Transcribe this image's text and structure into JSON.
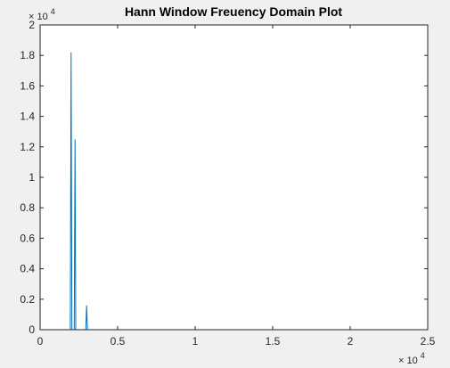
{
  "chart_data": {
    "type": "line",
    "title": "Hann Window Freuency Domain Plot",
    "xlabel": "",
    "ylabel": "",
    "xlim": [
      0,
      25000
    ],
    "ylim": [
      0,
      20000
    ],
    "grid": false,
    "x_ticks": [
      0,
      5000,
      10000,
      15000,
      20000,
      25000
    ],
    "x_tick_labels": [
      "0",
      "0.5",
      "1",
      "1.5",
      "2",
      "2.5"
    ],
    "y_ticks": [
      0,
      2000,
      4000,
      6000,
      8000,
      10000,
      12000,
      14000,
      16000,
      18000,
      20000
    ],
    "y_tick_labels": [
      "0",
      "0.2",
      "0.4",
      "0.6",
      "0.8",
      "1",
      "1.2",
      "1.4",
      "1.6",
      "1.8",
      "2"
    ],
    "x_exponent_label": "× 10",
    "x_exponent_power": "4",
    "y_exponent_label": "× 10",
    "y_exponent_power": "4",
    "line_color": "#0072BD",
    "series": [
      {
        "x": [
          0,
          1900,
          1950,
          2000,
          2050,
          2100,
          2150,
          2200,
          2250,
          2300,
          2350,
          2900,
          2950,
          3000,
          3050,
          3100,
          25000
        ],
        "y": [
          0,
          0,
          0,
          18200,
          0,
          0,
          0,
          0,
          12500,
          0,
          0,
          0,
          0,
          1600,
          0,
          0,
          0
        ]
      }
    ]
  }
}
